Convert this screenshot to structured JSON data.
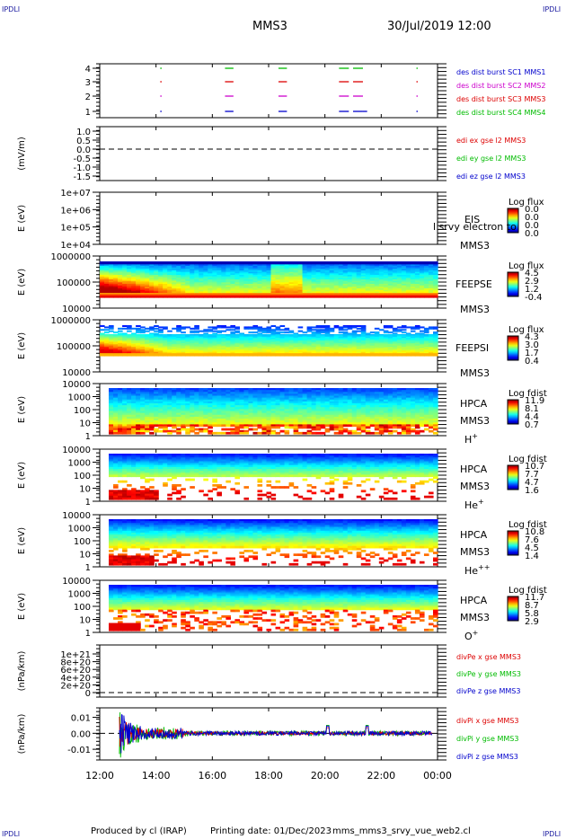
{
  "header": {
    "corner_tl": "IPDLI",
    "corner_tr": "IPDLI",
    "corner_bl": "IPDLI",
    "corner_br": "IPDLI",
    "spacecraft": "MMS3",
    "datetime": "30/Jul/2019 12:00"
  },
  "footer": {
    "produced": "Produced by cl (IRAP)",
    "printing": "Printing date: 01/Dec/2023",
    "script": "mms_mms3_srvy_vue_web2.cl"
  },
  "colors": {
    "sc1": "#0000cc",
    "sc2": "#cc00cc",
    "sc3": "#dd0000",
    "sc4": "#00bb00",
    "x": "#dd0000",
    "y": "#00bb00",
    "z": "#0000cc"
  },
  "chart_data": {
    "type": "multi-panel time series / spectrogram stack",
    "x_axis": {
      "range": [
        "12:00",
        "00:00"
      ],
      "ticks": [
        "12:00",
        "14:00",
        "16:00",
        "18:00",
        "20:00",
        "22:00",
        "00:00"
      ]
    },
    "panels": [
      {
        "type": "scatter",
        "ylabel": "",
        "yticks": [
          "4",
          "3",
          "2",
          "1"
        ],
        "legend": [
          "des dist burst SC1 MMS1",
          "des dist burst SC2 MMS2",
          "des dist burst SC3 MMS3",
          "des dist burst SC4 MMS4"
        ],
        "burst_hours": [
          [
            14.15,
            14.2
          ],
          [
            16.45,
            16.75
          ],
          [
            18.35,
            18.65
          ],
          [
            20.5,
            20.85
          ],
          [
            21.0,
            21.35
          ],
          [
            23.25,
            23.3
          ]
        ],
        "sc1_extra": [
          [
            21.35,
            21.5
          ]
        ]
      },
      {
        "type": "line",
        "ylabel": "(mV/m)",
        "yticks": [
          "1.0",
          "0.5",
          "0.0",
          "-0.5",
          "-1.0",
          "-1.5"
        ],
        "ylim": [
          -1.5,
          1.0
        ],
        "legend": [
          "edi ex gse l2 MMS3",
          "edi ey gse l2 MMS3",
          "edi ez gse l2 MMS3"
        ],
        "reference_line": 0.0
      },
      {
        "type": "heatmap",
        "ylabel": "E (eV)",
        "yticks": [
          "1e+07",
          "1e+06",
          "1e+05",
          "1e+04"
        ],
        "instrument": [
          "EIS",
          "MMS3"
        ],
        "overlay_text": "l srvy electron to",
        "colorbar": {
          "title": "Log flux",
          "ticks": [
            "0.0",
            "0.0",
            "0.0",
            "0.0"
          ]
        }
      },
      {
        "type": "heatmap",
        "ylabel": "E (eV)",
        "yticks": [
          "1000000",
          "100000",
          "10000"
        ],
        "instrument": [
          "FEEPSE",
          "MMS3"
        ],
        "colorbar": {
          "title": "Log flux",
          "ticks": [
            "4.5",
            "2.9",
            "1.2",
            "-0.4"
          ]
        }
      },
      {
        "type": "heatmap",
        "ylabel": "E (eV)",
        "yticks": [
          "1000000",
          "100000",
          "10000"
        ],
        "instrument": [
          "FEEPSI",
          "MMS3"
        ],
        "colorbar": {
          "title": "Log flux",
          "ticks": [
            "4.3",
            "3.0",
            "1.7",
            "0.4"
          ]
        }
      },
      {
        "type": "heatmap",
        "ylabel": "E (eV)",
        "yticks": [
          "10000",
          "1000",
          "100",
          "10",
          "1"
        ],
        "instrument": [
          "HPCA",
          "MMS3"
        ],
        "species": "H",
        "species_sup": "+",
        "colorbar": {
          "title": "Log fdist",
          "ticks": [
            "11.9",
            "8.1",
            "4.4",
            "0.7"
          ]
        }
      },
      {
        "type": "heatmap",
        "ylabel": "E (eV)",
        "yticks": [
          "10000",
          "1000",
          "100",
          "10",
          "1"
        ],
        "instrument": [
          "HPCA",
          "MMS3"
        ],
        "species": "He",
        "species_sup": "+",
        "colorbar": {
          "title": "Log fdist",
          "ticks": [
            "10.7",
            "7.7",
            "4.7",
            "1.6"
          ]
        }
      },
      {
        "type": "heatmap",
        "ylabel": "E (eV)",
        "yticks": [
          "10000",
          "1000",
          "100",
          "10",
          "1"
        ],
        "instrument": [
          "HPCA",
          "MMS3"
        ],
        "species": "He",
        "species_sup": "++",
        "colorbar": {
          "title": "Log fdist",
          "ticks": [
            "10.8",
            "7.6",
            "4.5",
            "1.4"
          ]
        }
      },
      {
        "type": "heatmap",
        "ylabel": "E (eV)",
        "yticks": [
          "10000",
          "1000",
          "100",
          "10",
          "1"
        ],
        "instrument": [
          "HPCA",
          "MMS3"
        ],
        "species": "O",
        "species_sup": "+",
        "colorbar": {
          "title": "Log fdist",
          "ticks": [
            "11.7",
            "8.7",
            "5.8",
            "2.9"
          ]
        }
      },
      {
        "type": "line",
        "ylabel": "(nPa/km)",
        "yticks": [
          "1e+21",
          "8e+20",
          "6e+20",
          "4e+20",
          "2e+20",
          "0"
        ],
        "ylim": [
          0,
          1e+21
        ],
        "legend": [
          "divPe x gse MMS3",
          "divPe y gse MMS3",
          "divPe z gse MMS3"
        ],
        "reference_line": 0
      },
      {
        "type": "line",
        "ylabel": "(nPa/km)",
        "yticks": [
          "0.01",
          "0.00",
          "-0.01"
        ],
        "ylim": [
          -0.015,
          0.012
        ],
        "legend": [
          "divPi x gse MMS3",
          "divPi y gse MMS3",
          "divPi z gse MMS3"
        ],
        "reference_line": 0.0
      }
    ]
  }
}
